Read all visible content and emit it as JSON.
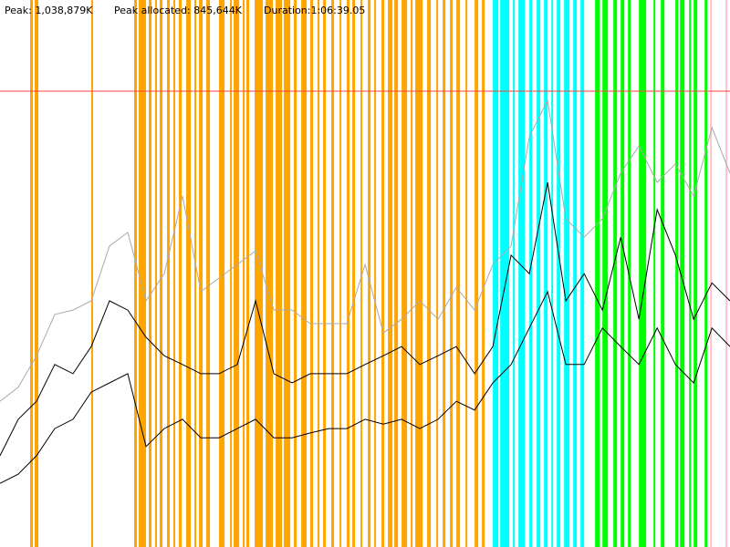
{
  "chart_data": {
    "type": "memory-timeline",
    "labels": [
      "Peak: 1,038,879K",
      "Peak allocated: 845,644K",
      "Duration:1:06:39.05"
    ],
    "peak": 1038879,
    "peak_color": "#ff4040",
    "xlim": [
      0,
      3999.05
    ],
    "ylim": [
      0,
      1246655
    ],
    "x": [
      0,
      100,
      200,
      300,
      400,
      500,
      600,
      700,
      800,
      900,
      1000,
      1100,
      1200,
      1300,
      1400,
      1500,
      1600,
      1700,
      1800,
      1900,
      2000,
      2100,
      2200,
      2300,
      2400,
      2500,
      2600,
      2700,
      2800,
      2900,
      3000,
      3100,
      3200,
      3300,
      3400,
      3500,
      3600,
      3700,
      3800,
      3900,
      3999
    ],
    "series": [
      {
        "color": "#aaaaaa",
        "values": [
          332000,
          364000,
          436000,
          530000,
          540000,
          561000,
          686000,
          717000,
          561000,
          623000,
          800000,
          582000,
          613000,
          644000,
          675000,
          540000,
          540000,
          509000,
          509000,
          509000,
          644000,
          488000,
          519000,
          561000,
          519000,
          592000,
          540000,
          644000,
          686000,
          935000,
          1018000,
          748000,
          706000,
          748000,
          852000,
          914000,
          831000,
          873000,
          800000,
          956000,
          852000
        ]
      },
      {
        "color": "#000000",
        "values": [
          208000,
          291000,
          332000,
          416000,
          395000,
          457000,
          561000,
          540000,
          478000,
          436000,
          416000,
          395000,
          395000,
          416000,
          561000,
          395000,
          374000,
          395000,
          395000,
          395000,
          416000,
          436000,
          457000,
          416000,
          436000,
          457000,
          395000,
          457000,
          665000,
          623000,
          831000,
          561000,
          623000,
          540000,
          706000,
          519000,
          769000,
          665000,
          519000,
          602000,
          561000
        ]
      },
      {
        "color": "#000000",
        "values": [
          145000,
          166000,
          208000,
          270000,
          291000,
          353000,
          374000,
          395000,
          229000,
          270000,
          291000,
          249000,
          249000,
          270000,
          291000,
          249000,
          249000,
          260000,
          270000,
          270000,
          291000,
          280000,
          291000,
          270000,
          291000,
          332000,
          312000,
          374000,
          416000,
          499000,
          582000,
          416000,
          416000,
          499000,
          457000,
          416000,
          499000,
          416000,
          374000,
          499000,
          457000
        ]
      }
    ],
    "events": [
      {
        "color": "#ffa500",
        "spans": [
          [
            165,
            180
          ],
          [
            190,
            210
          ],
          [
            500,
            510
          ],
          [
            735,
            750
          ],
          [
            760,
            800
          ],
          [
            815,
            830
          ],
          [
            850,
            860
          ],
          [
            875,
            890
          ],
          [
            915,
            930
          ],
          [
            950,
            960
          ],
          [
            980,
            995
          ],
          [
            1020,
            1045
          ],
          [
            1065,
            1075
          ],
          [
            1090,
            1110
          ],
          [
            1130,
            1150
          ],
          [
            1200,
            1230
          ],
          [
            1260,
            1270
          ],
          [
            1280,
            1310
          ],
          [
            1330,
            1340
          ],
          [
            1350,
            1365
          ],
          [
            1395,
            1440
          ],
          [
            1455,
            1495
          ],
          [
            1510,
            1545
          ],
          [
            1555,
            1590
          ],
          [
            1610,
            1625
          ],
          [
            1650,
            1680
          ],
          [
            1700,
            1715
          ],
          [
            1740,
            1750
          ],
          [
            1770,
            1785
          ],
          [
            1815,
            1830
          ],
          [
            1860,
            1870
          ],
          [
            1900,
            1915
          ],
          [
            1930,
            1945
          ],
          [
            1975,
            1985
          ],
          [
            2015,
            2030
          ],
          [
            2050,
            2060
          ],
          [
            2090,
            2105
          ],
          [
            2125,
            2150
          ],
          [
            2160,
            2180
          ],
          [
            2200,
            2230
          ],
          [
            2250,
            2260
          ],
          [
            2275,
            2315
          ],
          [
            2340,
            2360
          ],
          [
            2390,
            2400
          ],
          [
            2425,
            2440
          ],
          [
            2465,
            2480
          ],
          [
            2500,
            2520
          ],
          [
            2550,
            2560
          ],
          [
            2600,
            2620
          ],
          [
            2640,
            2655
          ]
        ]
      },
      {
        "color": "#00ffff",
        "spans": [
          [
            2700,
            2730
          ],
          [
            2740,
            2790
          ],
          [
            2810,
            2820
          ],
          [
            2840,
            2875
          ],
          [
            2900,
            2915
          ],
          [
            2940,
            2960
          ],
          [
            2980,
            3000
          ],
          [
            3020,
            3030
          ],
          [
            3050,
            3070
          ],
          [
            3090,
            3120
          ],
          [
            3140,
            3160
          ],
          [
            3180,
            3200
          ]
        ]
      },
      {
        "color": "#00ff00",
        "spans": [
          [
            3260,
            3285
          ],
          [
            3300,
            3330
          ],
          [
            3360,
            3380
          ],
          [
            3400,
            3420
          ],
          [
            3440,
            3455
          ],
          [
            3500,
            3540
          ],
          [
            3580,
            3590
          ],
          [
            3620,
            3640
          ],
          [
            3700,
            3715
          ],
          [
            3725,
            3750
          ],
          [
            3775,
            3785
          ],
          [
            3800,
            3820
          ],
          [
            3860,
            3875
          ]
        ]
      },
      {
        "color": "#ffc0cb",
        "spans": [
          [
            3890,
            3900
          ],
          [
            3975,
            3985
          ]
        ]
      }
    ]
  }
}
